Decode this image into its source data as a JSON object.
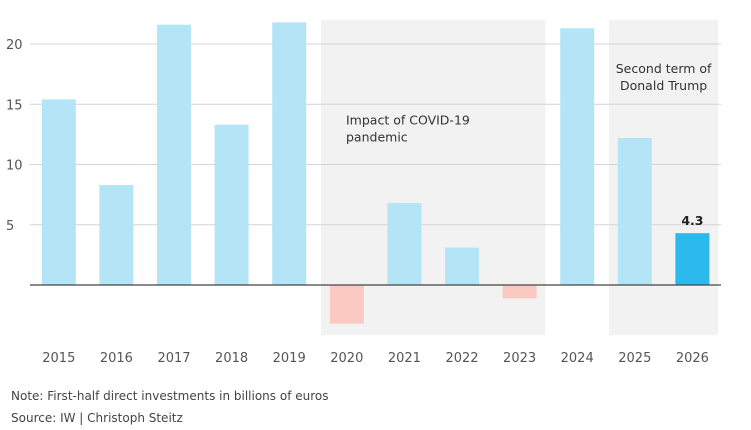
{
  "chart_data": {
    "type": "bar",
    "categories": [
      "2015",
      "2016",
      "2017",
      "2018",
      "2019",
      "2020",
      "2021",
      "2022",
      "2023",
      "2024",
      "2025",
      "2026"
    ],
    "values": [
      15.4,
      8.3,
      21.6,
      13.3,
      21.8,
      -3.2,
      6.8,
      3.1,
      -1.1,
      21.3,
      12.2,
      4.3
    ],
    "ylim": [
      -4,
      22
    ],
    "yticks": [
      5,
      10,
      15,
      20
    ],
    "grid": true,
    "colors": {
      "bar": "#b3e5f7",
      "negative": "#f9c9c2",
      "highlight": "#2bb8ec",
      "shade": "#f2f2f2",
      "grid": "#d4d4d4",
      "zero_line": "#444444"
    },
    "highlight_category": "2026",
    "data_labels": [
      {
        "category": "2026",
        "text": "4.3"
      }
    ],
    "shaded_regions": [
      {
        "from": "2020",
        "to": "2023",
        "label_lines": [
          "Impact of COVID-19",
          "pandemic"
        ]
      },
      {
        "from": "2025",
        "to": "2026",
        "label_lines": [
          "Second term of",
          "Donald Trump"
        ]
      }
    ]
  },
  "footer": {
    "note": "Note: First-half direct investments in billions of euros",
    "source": "Source: IW | Christoph Steitz"
  }
}
